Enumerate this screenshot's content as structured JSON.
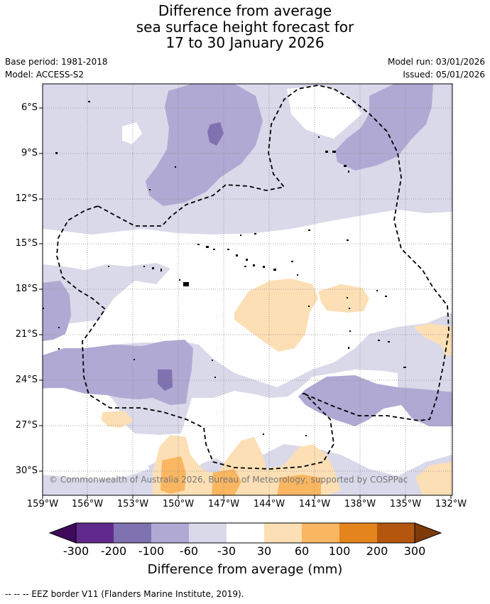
{
  "title": {
    "line1": "Difference from average",
    "line2": "sea surface height forecast for",
    "line3": "17 to 30 January 2026"
  },
  "meta": {
    "base_period": "Base period: 1981-2018",
    "model": "Model: ACCESS-S2",
    "model_run": "Model run: 03/01/2026",
    "issued": "Issued: 05/01/2026"
  },
  "latitude_labels": [
    "6°S",
    "9°S",
    "12°S",
    "15°S",
    "18°S",
    "21°S",
    "24°S",
    "27°S",
    "30°S"
  ],
  "longitude_labels": [
    "159°W",
    "156°W",
    "153°W",
    "150°W",
    "147°W",
    "144°W",
    "141°W",
    "138°W",
    "135°W",
    "132°W"
  ],
  "copyright": "© Commonwealth of Australia 2026, Bureau of Meteorology, supported by COSPPac",
  "colorbar": {
    "ticks": [
      "-300",
      "-200",
      "-100",
      "-60",
      "-30",
      "30",
      "60",
      "100",
      "200",
      "300"
    ],
    "colors": [
      "#3f0a5c",
      "#5f2a8b",
      "#7f72b0",
      "#b0a9d3",
      "#d9d9ea",
      "#ffffff",
      "#fddfb5",
      "#fbb661",
      "#e3841c",
      "#b3570e",
      "#7f3a0a"
    ],
    "title": "Difference from average (mm)"
  },
  "footnote": "--  --  -- EEZ border V11 (Flanders Marine Institute, 2019)."
}
